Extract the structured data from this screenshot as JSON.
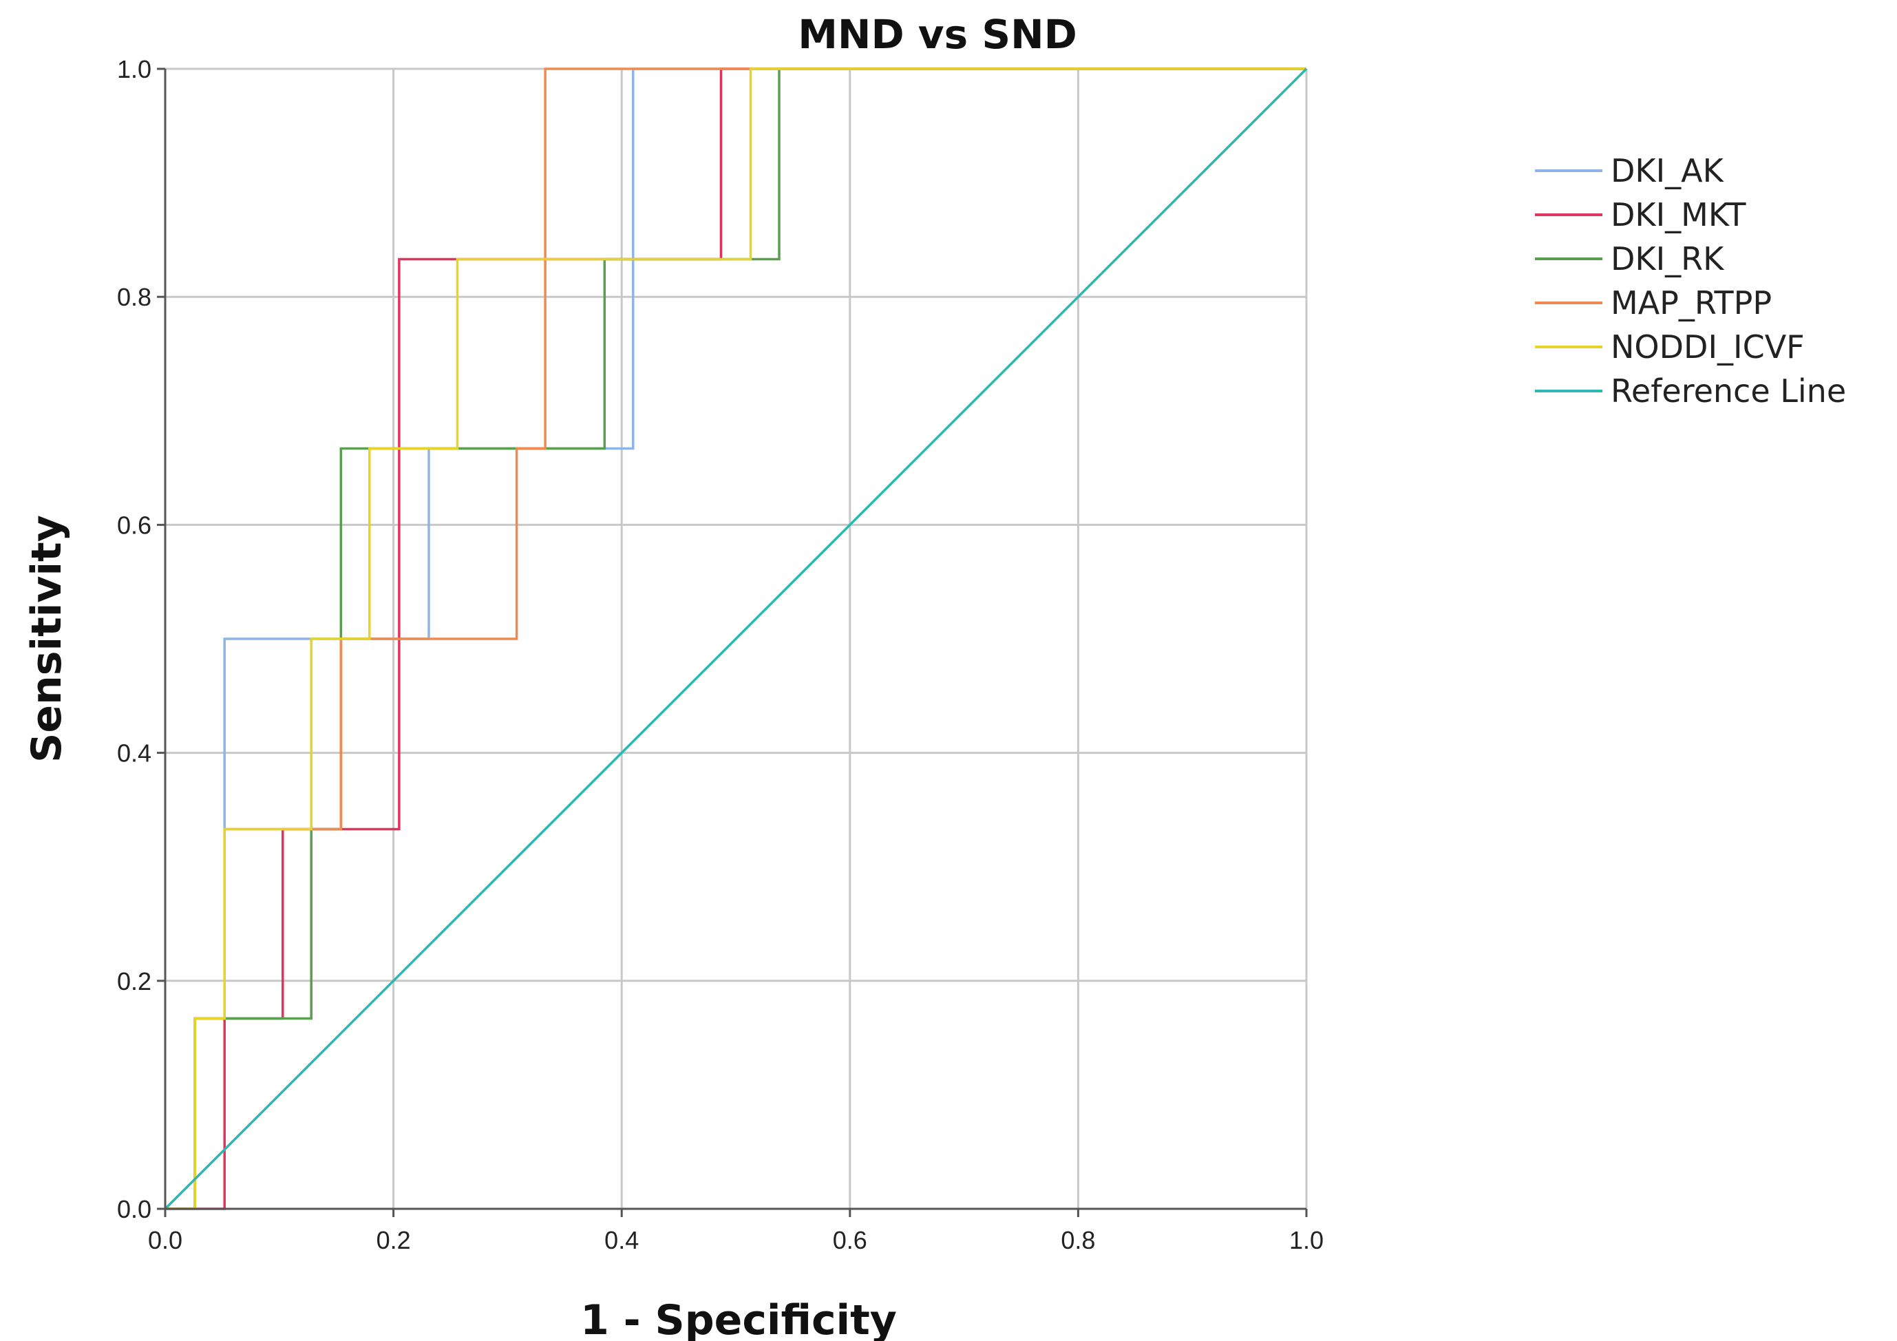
{
  "chart_data": {
    "type": "line",
    "title": "MND vs SND",
    "xlabel": "1 - Specificity",
    "ylabel": "Sensitivity",
    "xlim": [
      0,
      1
    ],
    "ylim": [
      0,
      1
    ],
    "grid": true,
    "legend_position": "right",
    "x_ticks": [
      "0.0",
      "0.2",
      "0.4",
      "0.6",
      "0.8",
      "1.0"
    ],
    "y_ticks": [
      "0.0",
      "0.2",
      "0.4",
      "0.6",
      "0.8",
      "1.0"
    ],
    "series": [
      {
        "name": "DKI_AK",
        "color": "#8fb4e8",
        "x": [
          0,
          0.026,
          0.026,
          0.052,
          0.052,
          0.231,
          0.231,
          0.41,
          0.41,
          1.0
        ],
        "y": [
          0,
          0,
          0.167,
          0.167,
          0.5,
          0.5,
          0.667,
          0.667,
          1.0,
          1.0
        ]
      },
      {
        "name": "DKI_MKT",
        "color": "#e0345c",
        "x": [
          0,
          0.052,
          0.052,
          0.103,
          0.103,
          0.205,
          0.205,
          0.487,
          0.487,
          1.0
        ],
        "y": [
          0,
          0,
          0.167,
          0.167,
          0.333,
          0.333,
          0.833,
          0.833,
          1.0,
          1.0
        ]
      },
      {
        "name": "DKI_RK",
        "color": "#5a9e4f",
        "x": [
          0,
          0.026,
          0.026,
          0.128,
          0.128,
          0.154,
          0.154,
          0.385,
          0.385,
          0.538,
          0.538,
          1.0
        ],
        "y": [
          0,
          0,
          0.167,
          0.167,
          0.333,
          0.333,
          0.667,
          0.667,
          0.833,
          0.833,
          1.0,
          1.0
        ]
      },
      {
        "name": "MAP_RTPP",
        "color": "#f08a50",
        "x": [
          0,
          0.026,
          0.026,
          0.052,
          0.052,
          0.154,
          0.154,
          0.308,
          0.308,
          0.333,
          0.333,
          1.0
        ],
        "y": [
          0,
          0,
          0.167,
          0.167,
          0.333,
          0.333,
          0.5,
          0.5,
          0.667,
          0.667,
          1.0,
          1.0
        ]
      },
      {
        "name": "NODDI_ICVF",
        "color": "#e6d42a",
        "x": [
          0,
          0.026,
          0.026,
          0.052,
          0.052,
          0.128,
          0.128,
          0.179,
          0.179,
          0.256,
          0.256,
          0.513,
          0.513,
          1.0
        ],
        "y": [
          0,
          0,
          0.167,
          0.167,
          0.333,
          0.333,
          0.5,
          0.5,
          0.667,
          0.667,
          0.833,
          0.833,
          1.0,
          1.0
        ]
      },
      {
        "name": "Reference Line",
        "color": "#2bb8b0",
        "x": [
          0,
          1
        ],
        "y": [
          0,
          1
        ]
      }
    ]
  },
  "style": {
    "grid_color": "#c8c8c8",
    "axis_color": "#555555"
  }
}
